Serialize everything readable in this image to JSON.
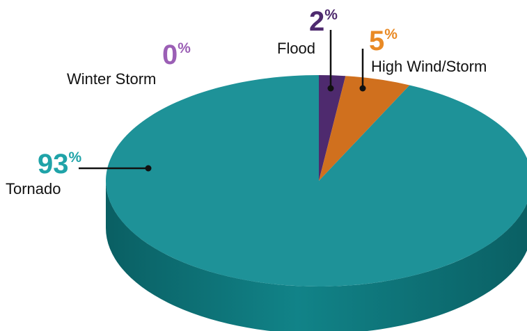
{
  "chart_data": {
    "type": "pie",
    "title": "",
    "style": "3d",
    "slices": [
      {
        "label": "Tornado",
        "value": 93,
        "percent_number": "93",
        "percent_symbol": "%",
        "color": "#1E9298"
      },
      {
        "label": "Winter Storm",
        "value": 0,
        "percent_number": "0",
        "percent_symbol": "%",
        "color": "#9B5FB5"
      },
      {
        "label": "Flood",
        "value": 2,
        "percent_number": "2",
        "percent_symbol": "%",
        "color": "#4E2A6E"
      },
      {
        "label": "High Wind/Storm",
        "value": 5,
        "percent_number": "5",
        "percent_symbol": "%",
        "color": "#D0701E"
      }
    ],
    "colors": {
      "tornado_side": "#0E6E73",
      "tornado_percent_text": "#1FA3A8",
      "winter_storm_percent_text": "#9B5FB5",
      "flood_percent_text": "#4E2A6E",
      "high_wind_percent_text": "#E98A25"
    }
  }
}
